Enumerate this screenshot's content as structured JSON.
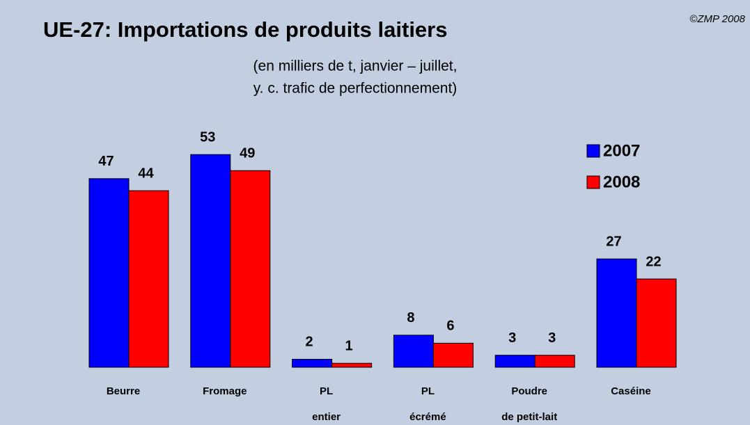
{
  "chart_data": {
    "type": "bar",
    "title": "UE-27: Importations de produits laitiers",
    "subtitle": [
      "(en milliers de t, janvier – juillet,",
      "y. c. trafic de perfectionnement)"
    ],
    "source": "©ZMP 2008",
    "categories": [
      [
        "Beurre"
      ],
      [
        "Fromage"
      ],
      [
        "PL",
        "entier"
      ],
      [
        "PL",
        "écrémé"
      ],
      [
        "Poudre",
        "de petit-lait"
      ],
      [
        "Caséine"
      ]
    ],
    "series": [
      {
        "name": "2007",
        "color": "#0000ff",
        "values": [
          47,
          53,
          2,
          8,
          3,
          27
        ]
      },
      {
        "name": "2008",
        "color": "#ff0000",
        "values": [
          44,
          49,
          1,
          6,
          3,
          22
        ]
      }
    ]
  }
}
